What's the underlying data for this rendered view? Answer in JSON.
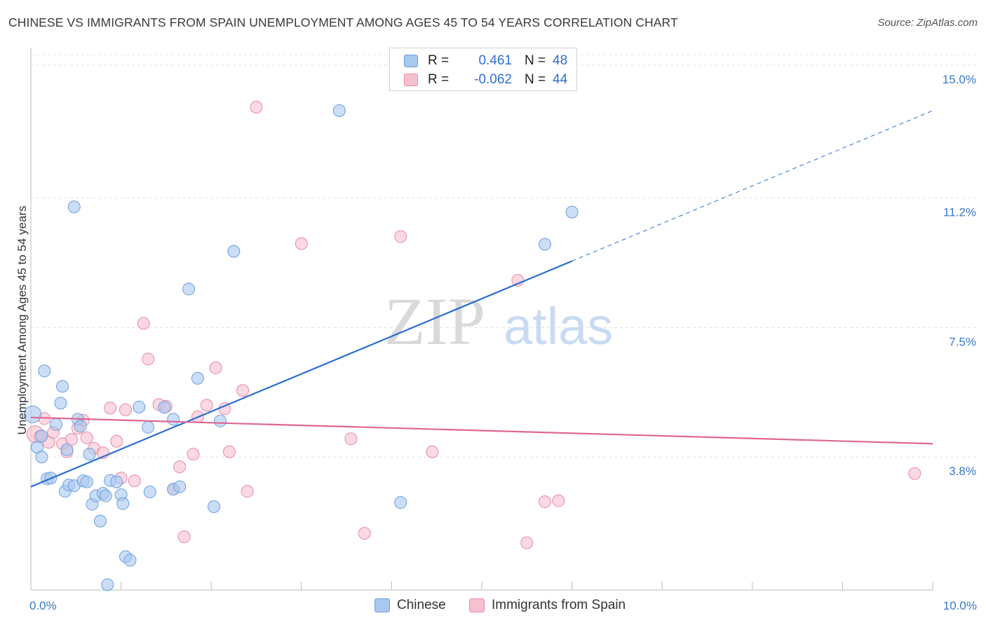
{
  "title": "CHINESE VS IMMIGRANTS FROM SPAIN UNEMPLOYMENT AMONG AGES 45 TO 54 YEARS CORRELATION CHART",
  "source": "Source: ZipAtlas.com",
  "watermark": {
    "zip": "ZIP",
    "atlas": "atlas"
  },
  "legend_top": {
    "rows": [
      {
        "r_label": "R =",
        "r_value": "0.461",
        "n_label": "N =",
        "n_value": "48",
        "color": "#a8c8f0",
        "border": "#6a9fe0"
      },
      {
        "r_label": "R =",
        "r_value": "-0.062",
        "n_label": "N =",
        "n_value": "44",
        "color": "#f7c0cf",
        "border": "#e88aa6"
      }
    ]
  },
  "legend_bottom": {
    "series1": "Chinese",
    "series2": "Immigrants from Spain"
  },
  "chart_data": {
    "type": "scatter",
    "title": "CHINESE VS IMMIGRANTS FROM SPAIN UNEMPLOYMENT AMONG AGES 45 TO 54 YEARS CORRELATION CHART",
    "xlabel": "",
    "ylabel": "Unemployment Among Ages 45 to 54 years",
    "xlim": [
      0,
      10
    ],
    "ylim": [
      0,
      15.3
    ],
    "x_tick_labels": [
      "0.0%",
      "10.0%"
    ],
    "y_ticks": [
      3.8,
      7.5,
      11.2,
      15.0
    ],
    "y_tick_labels": [
      "3.8%",
      "7.5%",
      "11.2%",
      "15.0%"
    ],
    "grid": true,
    "legend_placement": "top-center and bottom",
    "colors": {
      "chinese": "#a8c8f0",
      "chinese_edge": "#6a9fe0",
      "chinese_line": "#2a6fd0",
      "spain": "#f7c0cf",
      "spain_edge": "#e88aa6",
      "spain_line": "#e06694"
    },
    "series": [
      {
        "name": "Chinese",
        "trend": {
          "x0": 0,
          "y0": 2.95,
          "x1": 6.0,
          "y1": 9.4,
          "dash_to_x": 10.0,
          "dash_to_y": 13.7
        },
        "points": [
          [
            0.02,
            5.02
          ],
          [
            0.07,
            4.08
          ],
          [
            0.12,
            3.8
          ],
          [
            0.15,
            6.26
          ],
          [
            0.18,
            3.18
          ],
          [
            0.22,
            3.2
          ],
          [
            0.28,
            4.73
          ],
          [
            0.33,
            5.34
          ],
          [
            0.35,
            5.82
          ],
          [
            0.38,
            2.82
          ],
          [
            0.42,
            3.0
          ],
          [
            0.48,
            2.98
          ],
          [
            0.52,
            4.88
          ],
          [
            0.55,
            4.68
          ],
          [
            0.58,
            3.12
          ],
          [
            0.62,
            3.09
          ],
          [
            0.65,
            3.88
          ],
          [
            0.68,
            2.45
          ],
          [
            0.72,
            2.69
          ],
          [
            0.77,
            1.97
          ],
          [
            0.8,
            2.76
          ],
          [
            0.83,
            2.69
          ],
          [
            0.85,
            0.15
          ],
          [
            0.88,
            3.13
          ],
          [
            0.95,
            3.09
          ],
          [
            1.0,
            2.72
          ],
          [
            1.02,
            2.47
          ],
          [
            1.05,
            0.95
          ],
          [
            1.1,
            0.85
          ],
          [
            1.2,
            5.23
          ],
          [
            1.58,
            2.88
          ],
          [
            1.65,
            2.95
          ],
          [
            1.75,
            8.6
          ],
          [
            1.85,
            6.05
          ],
          [
            2.03,
            2.38
          ],
          [
            2.1,
            4.83
          ],
          [
            2.25,
            9.68
          ],
          [
            3.42,
            13.7
          ],
          [
            4.1,
            2.5
          ],
          [
            5.7,
            9.88
          ],
          [
            6.0,
            10.8
          ],
          [
            0.48,
            10.95
          ],
          [
            1.48,
            5.22
          ],
          [
            1.32,
            2.8
          ],
          [
            1.58,
            4.88
          ],
          [
            0.4,
            4.01
          ],
          [
            0.12,
            4.4
          ],
          [
            1.3,
            4.65
          ]
        ]
      },
      {
        "name": "Immigrants from Spain",
        "trend": {
          "x0": 0,
          "y0": 4.93,
          "x1": 10.0,
          "y1": 4.18
        },
        "points": [
          [
            0.05,
            4.45
          ],
          [
            0.1,
            4.38
          ],
          [
            0.15,
            4.9
          ],
          [
            0.2,
            4.22
          ],
          [
            0.25,
            4.5
          ],
          [
            0.35,
            4.18
          ],
          [
            0.4,
            3.95
          ],
          [
            0.45,
            4.3
          ],
          [
            0.52,
            4.62
          ],
          [
            0.58,
            4.85
          ],
          [
            0.62,
            4.35
          ],
          [
            0.7,
            4.05
          ],
          [
            0.8,
            3.92
          ],
          [
            0.88,
            5.2
          ],
          [
            0.95,
            4.25
          ],
          [
            1.05,
            5.15
          ],
          [
            1.15,
            3.12
          ],
          [
            1.25,
            7.62
          ],
          [
            1.3,
            6.6
          ],
          [
            1.42,
            5.3
          ],
          [
            1.5,
            5.25
          ],
          [
            1.58,
            2.88
          ],
          [
            1.65,
            3.52
          ],
          [
            1.7,
            1.52
          ],
          [
            1.8,
            3.88
          ],
          [
            1.85,
            4.95
          ],
          [
            1.95,
            5.28
          ],
          [
            2.05,
            6.35
          ],
          [
            2.15,
            5.18
          ],
          [
            2.2,
            3.95
          ],
          [
            2.35,
            5.7
          ],
          [
            2.4,
            2.82
          ],
          [
            2.5,
            13.8
          ],
          [
            3.0,
            9.9
          ],
          [
            3.55,
            4.32
          ],
          [
            3.7,
            1.62
          ],
          [
            4.1,
            10.1
          ],
          [
            4.45,
            3.95
          ],
          [
            5.4,
            8.85
          ],
          [
            5.5,
            1.35
          ],
          [
            5.7,
            2.52
          ],
          [
            5.85,
            2.55
          ],
          [
            9.8,
            3.33
          ],
          [
            1.0,
            3.2
          ]
        ]
      }
    ]
  }
}
